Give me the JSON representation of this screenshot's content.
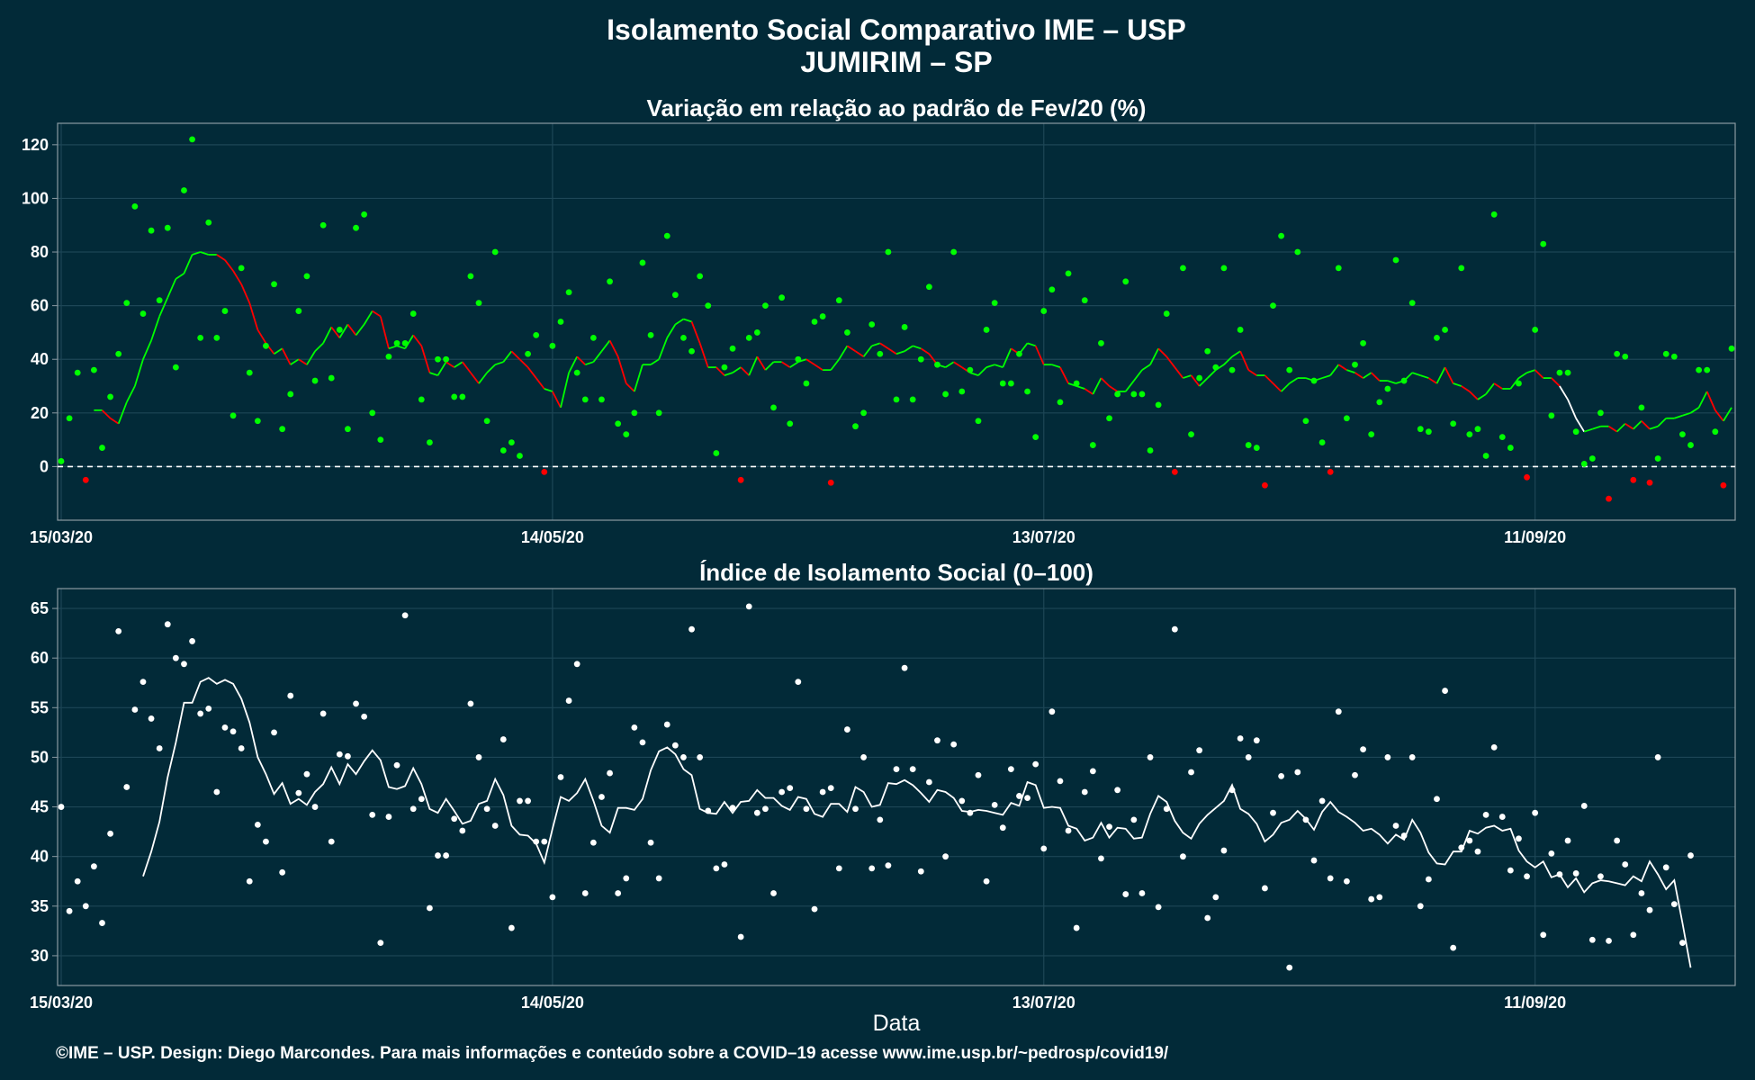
{
  "title": "Isolamento Social Comparativo IME – USP",
  "subtitle": "JUMIRIM – SP",
  "footer": "©IME – USP. Design: Diego Marcondes. Para mais informações e conteúdo sobre a COVID–19 acesse www.ime.usp.br/~pedrosp/covid19/",
  "colors": {
    "background": "#022a38",
    "panel_border": "#8a9aa2",
    "grid": "#1d4656",
    "positive": "#00ff00",
    "negative": "#ff0000",
    "index": "#ffffff"
  },
  "chart_data": [
    {
      "type": "scatter",
      "title": "Variação em relação ao padrão de Fev/20 (%)",
      "xlabel": "",
      "ylabel": "",
      "x_start": "2020-03-15",
      "x_end": "2020-10-05",
      "x_ticks": [
        "15/03/20",
        "14/05/20",
        "13/07/20",
        "11/09/20"
      ],
      "y_ticks": [
        0,
        20,
        40,
        60,
        80,
        100,
        120
      ],
      "ylim": [
        -20,
        128
      ],
      "reference_line": 0,
      "grid": true,
      "series": [
        {
          "values": [
            2,
            18,
            35,
            -5,
            36,
            7,
            26,
            42,
            61,
            97,
            57,
            88,
            62,
            89,
            37,
            103,
            122,
            48,
            91,
            48,
            58,
            19,
            74,
            35,
            17,
            45,
            68,
            14,
            27,
            58,
            71,
            32,
            90,
            33,
            51,
            14,
            89,
            94,
            20,
            10,
            41,
            46,
            46,
            57,
            25,
            9,
            40,
            40,
            26,
            26,
            71,
            61,
            17,
            80,
            6,
            9,
            4,
            42,
            49,
            -2,
            45,
            54,
            65,
            35,
            25,
            48,
            25,
            69,
            16,
            12,
            20,
            76,
            49,
            20,
            86,
            64,
            48,
            43,
            71,
            60,
            5,
            37,
            44,
            -5,
            48,
            50,
            60,
            22,
            63,
            16,
            40,
            31,
            54,
            56,
            -6,
            62,
            50,
            15,
            20,
            53,
            42,
            80,
            25,
            52,
            25,
            40,
            67,
            38,
            27,
            80,
            28,
            36,
            17,
            51,
            61,
            31,
            31,
            42,
            28,
            11,
            58,
            66,
            24,
            72,
            31,
            62,
            8,
            46,
            18,
            27,
            69,
            27,
            27,
            6,
            23,
            57,
            -2,
            74,
            12,
            33,
            43,
            37,
            74,
            36,
            51,
            8,
            7,
            -7,
            60,
            86,
            36,
            80,
            17,
            32,
            9,
            -2,
            74,
            18,
            38,
            46,
            12,
            24,
            29,
            77,
            32,
            61,
            14,
            13,
            48,
            51,
            16,
            74,
            12,
            14,
            4,
            94,
            11,
            7,
            31,
            -4,
            51,
            83,
            19,
            35,
            35,
            13,
            1,
            3,
            20,
            -12,
            42,
            41,
            -5,
            22,
            -6,
            3,
            42,
            41,
            12,
            8,
            36,
            36,
            13,
            -7,
            44
          ]
        },
        {
          "values": [
            21,
            21,
            18,
            16,
            24,
            30,
            40,
            47,
            56,
            63,
            70,
            72,
            79,
            80,
            79,
            79,
            77,
            73,
            68,
            61,
            51,
            46,
            42,
            44,
            38,
            40,
            38,
            43,
            46,
            52,
            48,
            53,
            49,
            53,
            58,
            56,
            44,
            45,
            44,
            49,
            45,
            35,
            34,
            39,
            37,
            39,
            35,
            31,
            35,
            38,
            39,
            43,
            40,
            37,
            33,
            29,
            28,
            22,
            35,
            41,
            38,
            39,
            43,
            47,
            41,
            31,
            28,
            38,
            38,
            40,
            48,
            53,
            55,
            54,
            46,
            37,
            37,
            34,
            35,
            37,
            34,
            41,
            36,
            39,
            39,
            37,
            39,
            40,
            38,
            36,
            36,
            40,
            45,
            43,
            41,
            45,
            46,
            44,
            42,
            43,
            45,
            44,
            42,
            38,
            37,
            39,
            37,
            35,
            34,
            37,
            38,
            37,
            44,
            42,
            46,
            45,
            38,
            38,
            37,
            31,
            30,
            29,
            27,
            33,
            30,
            28,
            28,
            32,
            36,
            38,
            44,
            41,
            37,
            33,
            34,
            30,
            33,
            36,
            38,
            41,
            43,
            36,
            34,
            34,
            31,
            28,
            31,
            33,
            33,
            32,
            33,
            34,
            38,
            36,
            35,
            33,
            35,
            32,
            32,
            31,
            32,
            35,
            34,
            33,
            31,
            37,
            31,
            30,
            28,
            25,
            27,
            31,
            29,
            29,
            33,
            35,
            36,
            33,
            33,
            30,
            25,
            18,
            13,
            14,
            15,
            15,
            13,
            16,
            14,
            17,
            14,
            15,
            18,
            18,
            19,
            20,
            22,
            28,
            21,
            17,
            22
          ]
        }
      ]
    },
    {
      "type": "scatter",
      "title": "Índice de Isolamento Social (0–100)",
      "xlabel": "Data",
      "ylabel": "",
      "x_start": "2020-03-15",
      "x_end": "2020-10-05",
      "x_ticks": [
        "15/03/20",
        "14/05/20",
        "13/07/20",
        "11/09/20"
      ],
      "y_ticks": [
        30,
        35,
        40,
        45,
        50,
        55,
        60,
        65
      ],
      "ylim": [
        27,
        67
      ],
      "grid": true,
      "series": [
        {
          "values": [
            45,
            34.5,
            37.5,
            35,
            39,
            33.3,
            42.3,
            62.7,
            47,
            54.8,
            57.6,
            53.9,
            50.9,
            63.4,
            60,
            59.4,
            61.7,
            54.4,
            54.9,
            46.5,
            53,
            52.6,
            50.9,
            37.5,
            43.2,
            41.5,
            52.5,
            38.4,
            56.2,
            46.4,
            48.3,
            45,
            54.4,
            41.5,
            50.3,
            50.1,
            55.4,
            54.1,
            44.2,
            31.3,
            44,
            49.2,
            64.3,
            44.8,
            45.8,
            34.8,
            40.1,
            40.1,
            43.8,
            42.6,
            55.4,
            50,
            44.8,
            43.1,
            51.8,
            32.8,
            45.6,
            45.6,
            41.5,
            41.5,
            35.9,
            48,
            55.7,
            59.4,
            36.3,
            41.4,
            46,
            48.4,
            36.3,
            37.8,
            53,
            51.5,
            41.4,
            37.8,
            53.3,
            51.2,
            50,
            62.9,
            50,
            44.6,
            38.8,
            39.2,
            44.9,
            31.9,
            65.2,
            44.4,
            44.8,
            36.3,
            46.5,
            46.9,
            57.6,
            44.8,
            34.7,
            46.5,
            46.9,
            38.8,
            52.8,
            44.8,
            50,
            38.8,
            43.7,
            39.1,
            48.8,
            59,
            48.8,
            38.5,
            47.5,
            51.7,
            40,
            51.3,
            45.6,
            44.4,
            48.2,
            37.5,
            45.2,
            42.9,
            48.8,
            46.1,
            45.9,
            49.3,
            40.8,
            54.6,
            47.6,
            42.6,
            32.8,
            46.5,
            48.6,
            39.8,
            43,
            46.7,
            36.2,
            43.7,
            36.3,
            50,
            34.9,
            44.8,
            62.9,
            40,
            48.5,
            50.7,
            33.8,
            35.9,
            40.6,
            46.7,
            51.9,
            50,
            51.7,
            36.8,
            44.4,
            48.1,
            28.8,
            48.5,
            43.7,
            39.6,
            45.6,
            37.8,
            54.6,
            37.5,
            48.2,
            50.8,
            35.7,
            35.9,
            50,
            43.1,
            42.1,
            50,
            35,
            37.7,
            45.8,
            56.7,
            30.8,
            40.9,
            41.6,
            40.5,
            44.2,
            51,
            44,
            38.6,
            41.8,
            38,
            44.4,
            32.1,
            40.3,
            38.2,
            41.6,
            38.3,
            45.1,
            31.6,
            38,
            31.5,
            41.6,
            39.2,
            32.1,
            36.3,
            34.6,
            50,
            38.9,
            35.2,
            31.3,
            40.1
          ]
        },
        {
          "values": [
            38,
            40.5,
            43.5,
            48,
            51.5,
            55.5,
            55.5,
            57.6,
            58,
            57.4,
            57.8,
            57.4,
            55.9,
            53.5,
            50,
            48.3,
            46.3,
            47.4,
            45.3,
            45.8,
            45.2,
            46.5,
            47.3,
            49,
            47.3,
            49.3,
            48.3,
            49.6,
            50.7,
            49.7,
            47,
            46.8,
            47.1,
            48.9,
            47.3,
            44.8,
            44.4,
            45.8,
            44.6,
            43.3,
            43.6,
            45.3,
            45.6,
            47.8,
            46.2,
            43.1,
            42.2,
            42.1,
            41.3,
            39.4,
            42.8,
            46,
            45.6,
            46.4,
            47.8,
            45.6,
            43.1,
            42.4,
            44.9,
            44.9,
            44.7,
            45.8,
            48.7,
            50.6,
            51,
            50.3,
            48.8,
            48.2,
            44.8,
            44.4,
            44.3,
            45.5,
            44.4,
            45.5,
            45.6,
            46.7,
            45.9,
            45.9,
            45.1,
            44.7,
            46,
            45.8,
            44.3,
            44,
            45.3,
            45.3,
            44.5,
            47,
            46.5,
            45,
            45.2,
            47.4,
            47.3,
            47.7,
            47.2,
            46.4,
            45.5,
            46.7,
            46.5,
            45.9,
            44.6,
            44.5,
            44.7,
            44.6,
            44.4,
            44.2,
            45.4,
            45.1,
            47.5,
            47.2,
            44.9,
            45,
            44.9,
            43.1,
            42.8,
            41.6,
            41.9,
            43.4,
            41.9,
            42.9,
            42.8,
            41.8,
            41.9,
            44.3,
            46.1,
            45.5,
            43.6,
            42.4,
            41.8,
            43.3,
            44.2,
            44.9,
            45.6,
            47.2,
            44.8,
            44.3,
            43.3,
            41.5,
            42.2,
            43.4,
            43.7,
            44.6,
            43.8,
            42.7,
            44.5,
            45.5,
            44.5,
            44,
            43.4,
            42.6,
            42.8,
            42.2,
            41.3,
            42.2,
            41.7,
            43.7,
            42.4,
            40.4,
            39.3,
            39.2,
            40.5,
            40.5,
            42.6,
            42.3,
            42.9,
            43.1,
            42.6,
            42.8,
            40.6,
            39.5,
            38.9,
            39.5,
            37.9,
            38.2,
            36.9,
            37.8,
            36.4,
            37.3,
            37.6,
            37.5,
            37.3,
            37.1,
            38,
            37.5,
            39.5,
            38.2,
            36.7,
            37.6,
            33.3,
            28.8
          ]
        }
      ]
    }
  ]
}
